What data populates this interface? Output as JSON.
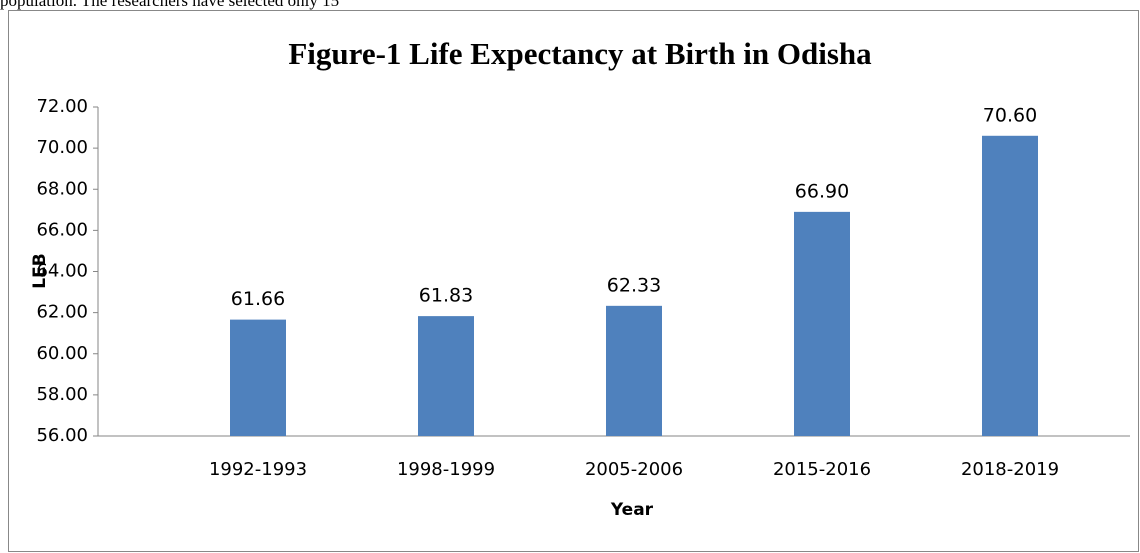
{
  "document_text": "population.  The researchers have selected only 15",
  "chart_data": {
    "type": "bar",
    "title": "Figure-1 Life Expectancy at Birth in  Odisha",
    "x_label": "Year",
    "y_label": "LEB",
    "categories": [
      "1992-1993",
      "1998-1999",
      "2005-2006",
      "2015-2016",
      "2018-2019"
    ],
    "values": [
      61.66,
      61.83,
      62.33,
      66.9,
      70.6
    ],
    "value_labels": [
      "61.66",
      "61.83",
      "62.33",
      "66.90",
      "70.60"
    ],
    "color": "#4f81bd",
    "ylim": [
      56,
      72
    ],
    "yticks": [
      {
        "value": 56,
        "label": "56.00"
      },
      {
        "value": 58,
        "label": "58.00"
      },
      {
        "value": 60,
        "label": "60.00"
      },
      {
        "value": 62,
        "label": "62.00"
      },
      {
        "value": 64,
        "label": "64.00"
      },
      {
        "value": 66,
        "label": "66.00"
      },
      {
        "value": 68,
        "label": "68.00"
      },
      {
        "value": 70,
        "label": "70.00"
      },
      {
        "value": 72,
        "label": "72.00"
      }
    ],
    "grid": false
  }
}
